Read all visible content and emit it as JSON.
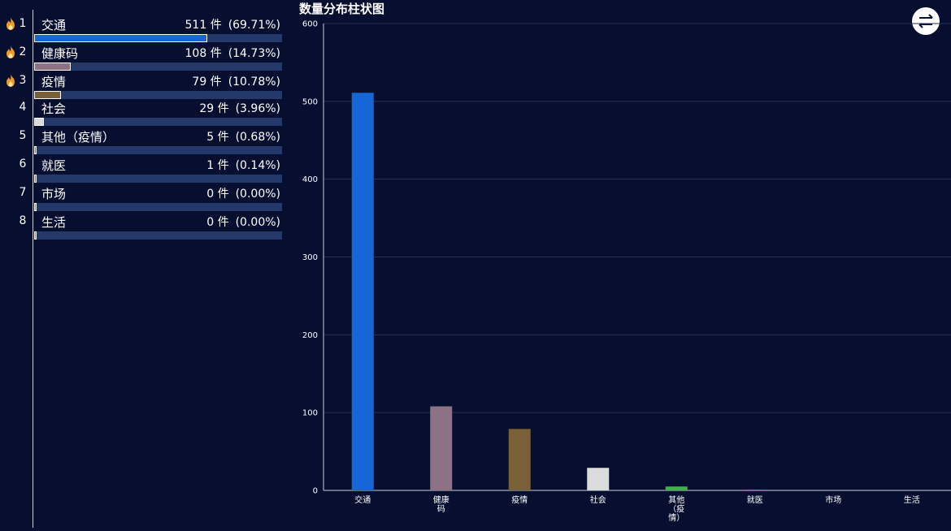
{
  "ranking": [
    {
      "rank": "1",
      "label": "交通",
      "count_text": "511 件",
      "percent_text": "(69.71%)",
      "value": 511,
      "color": "#1567d5",
      "hot": true
    },
    {
      "rank": "2",
      "label": "健康码",
      "count_text": "108 件",
      "percent_text": "(14.73%)",
      "value": 108,
      "color": "#8f7185",
      "hot": true
    },
    {
      "rank": "3",
      "label": "疫情",
      "count_text": "79 件",
      "percent_text": "(10.78%)",
      "value": 79,
      "color": "#7a6038",
      "hot": true
    },
    {
      "rank": "4",
      "label": "社会",
      "count_text": "29 件",
      "percent_text": "(3.96%)",
      "value": 29,
      "color": "#d9dbdc",
      "hot": false
    },
    {
      "rank": "5",
      "label": "其他（疫情）",
      "count_text": "5 件",
      "percent_text": "(0.68%)",
      "value": 5,
      "color": "#3fb14a",
      "hot": false
    },
    {
      "rank": "6",
      "label": "就医",
      "count_text": "1 件",
      "percent_text": "(0.14%)",
      "value": 1,
      "color": "#3f8fc0",
      "hot": false
    },
    {
      "rank": "7",
      "label": "市场",
      "count_text": "0 件",
      "percent_text": "(0.00%)",
      "value": 0,
      "color": "#8a8fa3",
      "hot": false
    },
    {
      "rank": "8",
      "label": "生活",
      "count_text": "0 件",
      "percent_text": "(0.00%)",
      "value": 0,
      "color": "#8a8fa3",
      "hot": false
    }
  ],
  "icons": {
    "hot": "fire-icon",
    "swap": "swap-arrows-icon"
  },
  "chart_data": {
    "type": "bar",
    "title": "数量分布柱状图",
    "categories": [
      "交通",
      "健康码",
      "疫情",
      "社会",
      "其他（疫情）",
      "就医",
      "市场",
      "生活"
    ],
    "category_label_lines": [
      [
        "交通"
      ],
      [
        "健康",
        "码"
      ],
      [
        "疫情"
      ],
      [
        "社会"
      ],
      [
        "其他",
        "（疫",
        "情）"
      ],
      [
        "就医"
      ],
      [
        "市场"
      ],
      [
        "生活"
      ]
    ],
    "values": [
      511,
      108,
      79,
      29,
      5,
      1,
      0,
      0
    ],
    "colors": [
      "#1567d5",
      "#8f7185",
      "#7a6038",
      "#d9dbdc",
      "#3fb14a",
      "#3f8fc0",
      "#8a8fa3",
      "#8a8fa3"
    ],
    "ylim": [
      0,
      600
    ],
    "yticks": [
      "0",
      "100",
      "200",
      "300",
      "400",
      "500",
      "600"
    ],
    "grid": true,
    "xlabel": "",
    "ylabel": ""
  }
}
